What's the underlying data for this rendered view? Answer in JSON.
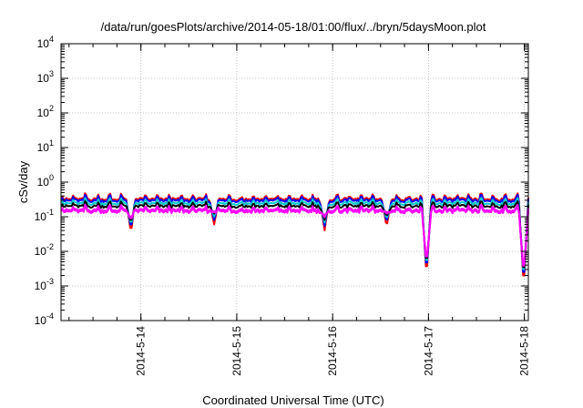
{
  "chart_data": {
    "type": "line",
    "title": "/data/run/goesPlots/archive/2014-05-18/01:00/flux/../bryn/5daysMoon.plot",
    "xlabel": "Coordinated Universal Time (UTC)",
    "ylabel": "cSv/day",
    "yscale": "log",
    "ylim": [
      0.0001,
      10000
    ],
    "xlim": [
      "2014-05-13 04:00",
      "2014-05-18 01:00"
    ],
    "grid": true,
    "legend": "none",
    "y_ticks": [
      {
        "base": "10",
        "exp": "-4",
        "value": 0.0001
      },
      {
        "base": "10",
        "exp": "-3",
        "value": 0.001
      },
      {
        "base": "10",
        "exp": "-2",
        "value": 0.01
      },
      {
        "base": "10",
        "exp": "-1",
        "value": 0.1
      },
      {
        "base": "10",
        "exp": "0",
        "value": 1
      },
      {
        "base": "10",
        "exp": "1",
        "value": 10
      },
      {
        "base": "10",
        "exp": "2",
        "value": 100
      },
      {
        "base": "10",
        "exp": "3",
        "value": 1000
      },
      {
        "base": "10",
        "exp": "4",
        "value": 10000
      }
    ],
    "x_ticks": [
      {
        "label": "2014-5-14",
        "value": "2014-05-14 00:00"
      },
      {
        "label": "2014-5-15",
        "value": "2014-05-15 00:00"
      },
      {
        "label": "2014-5-16",
        "value": "2014-05-16 00:00"
      },
      {
        "label": "2014-5-17",
        "value": "2014-05-17 00:00"
      },
      {
        "label": "2014-5-18",
        "value": "2014-05-18 00:00"
      }
    ],
    "series": [
      {
        "color": "#ff0000",
        "base": 0.32,
        "spike_amp": 0.12,
        "dip_depth": 0.6
      },
      {
        "color": "#0000ff",
        "base": 0.29,
        "spike_amp": 0.11,
        "dip_depth": 0.55
      },
      {
        "color": "#00cccc",
        "base": 0.24,
        "spike_amp": 0.08,
        "dip_depth": 0.5
      },
      {
        "color": "#000000",
        "base": 0.2,
        "spike_amp": 0.06,
        "dip_depth": 0.5
      },
      {
        "color": "#ff00ff",
        "base": 0.155,
        "spike_amp": 0.05,
        "dip_depth": 0.45
      },
      {
        "color": "#ff00ff",
        "base": 0.14,
        "spike_amp": 0.04,
        "dip_depth": 0.42
      }
    ],
    "dips": [
      {
        "t": "2014-05-13 21:30",
        "min": 0.035
      },
      {
        "t": "2014-05-14 18:20",
        "min": 0.06
      },
      {
        "t": "2014-05-15 22:00",
        "min": 0.04
      },
      {
        "t": "2014-05-16 13:30",
        "min": 0.05
      },
      {
        "t": "2014-05-16 23:30",
        "min": 0.0018
      },
      {
        "t": "2014-05-17 23:50",
        "min": 0.0009
      }
    ]
  }
}
